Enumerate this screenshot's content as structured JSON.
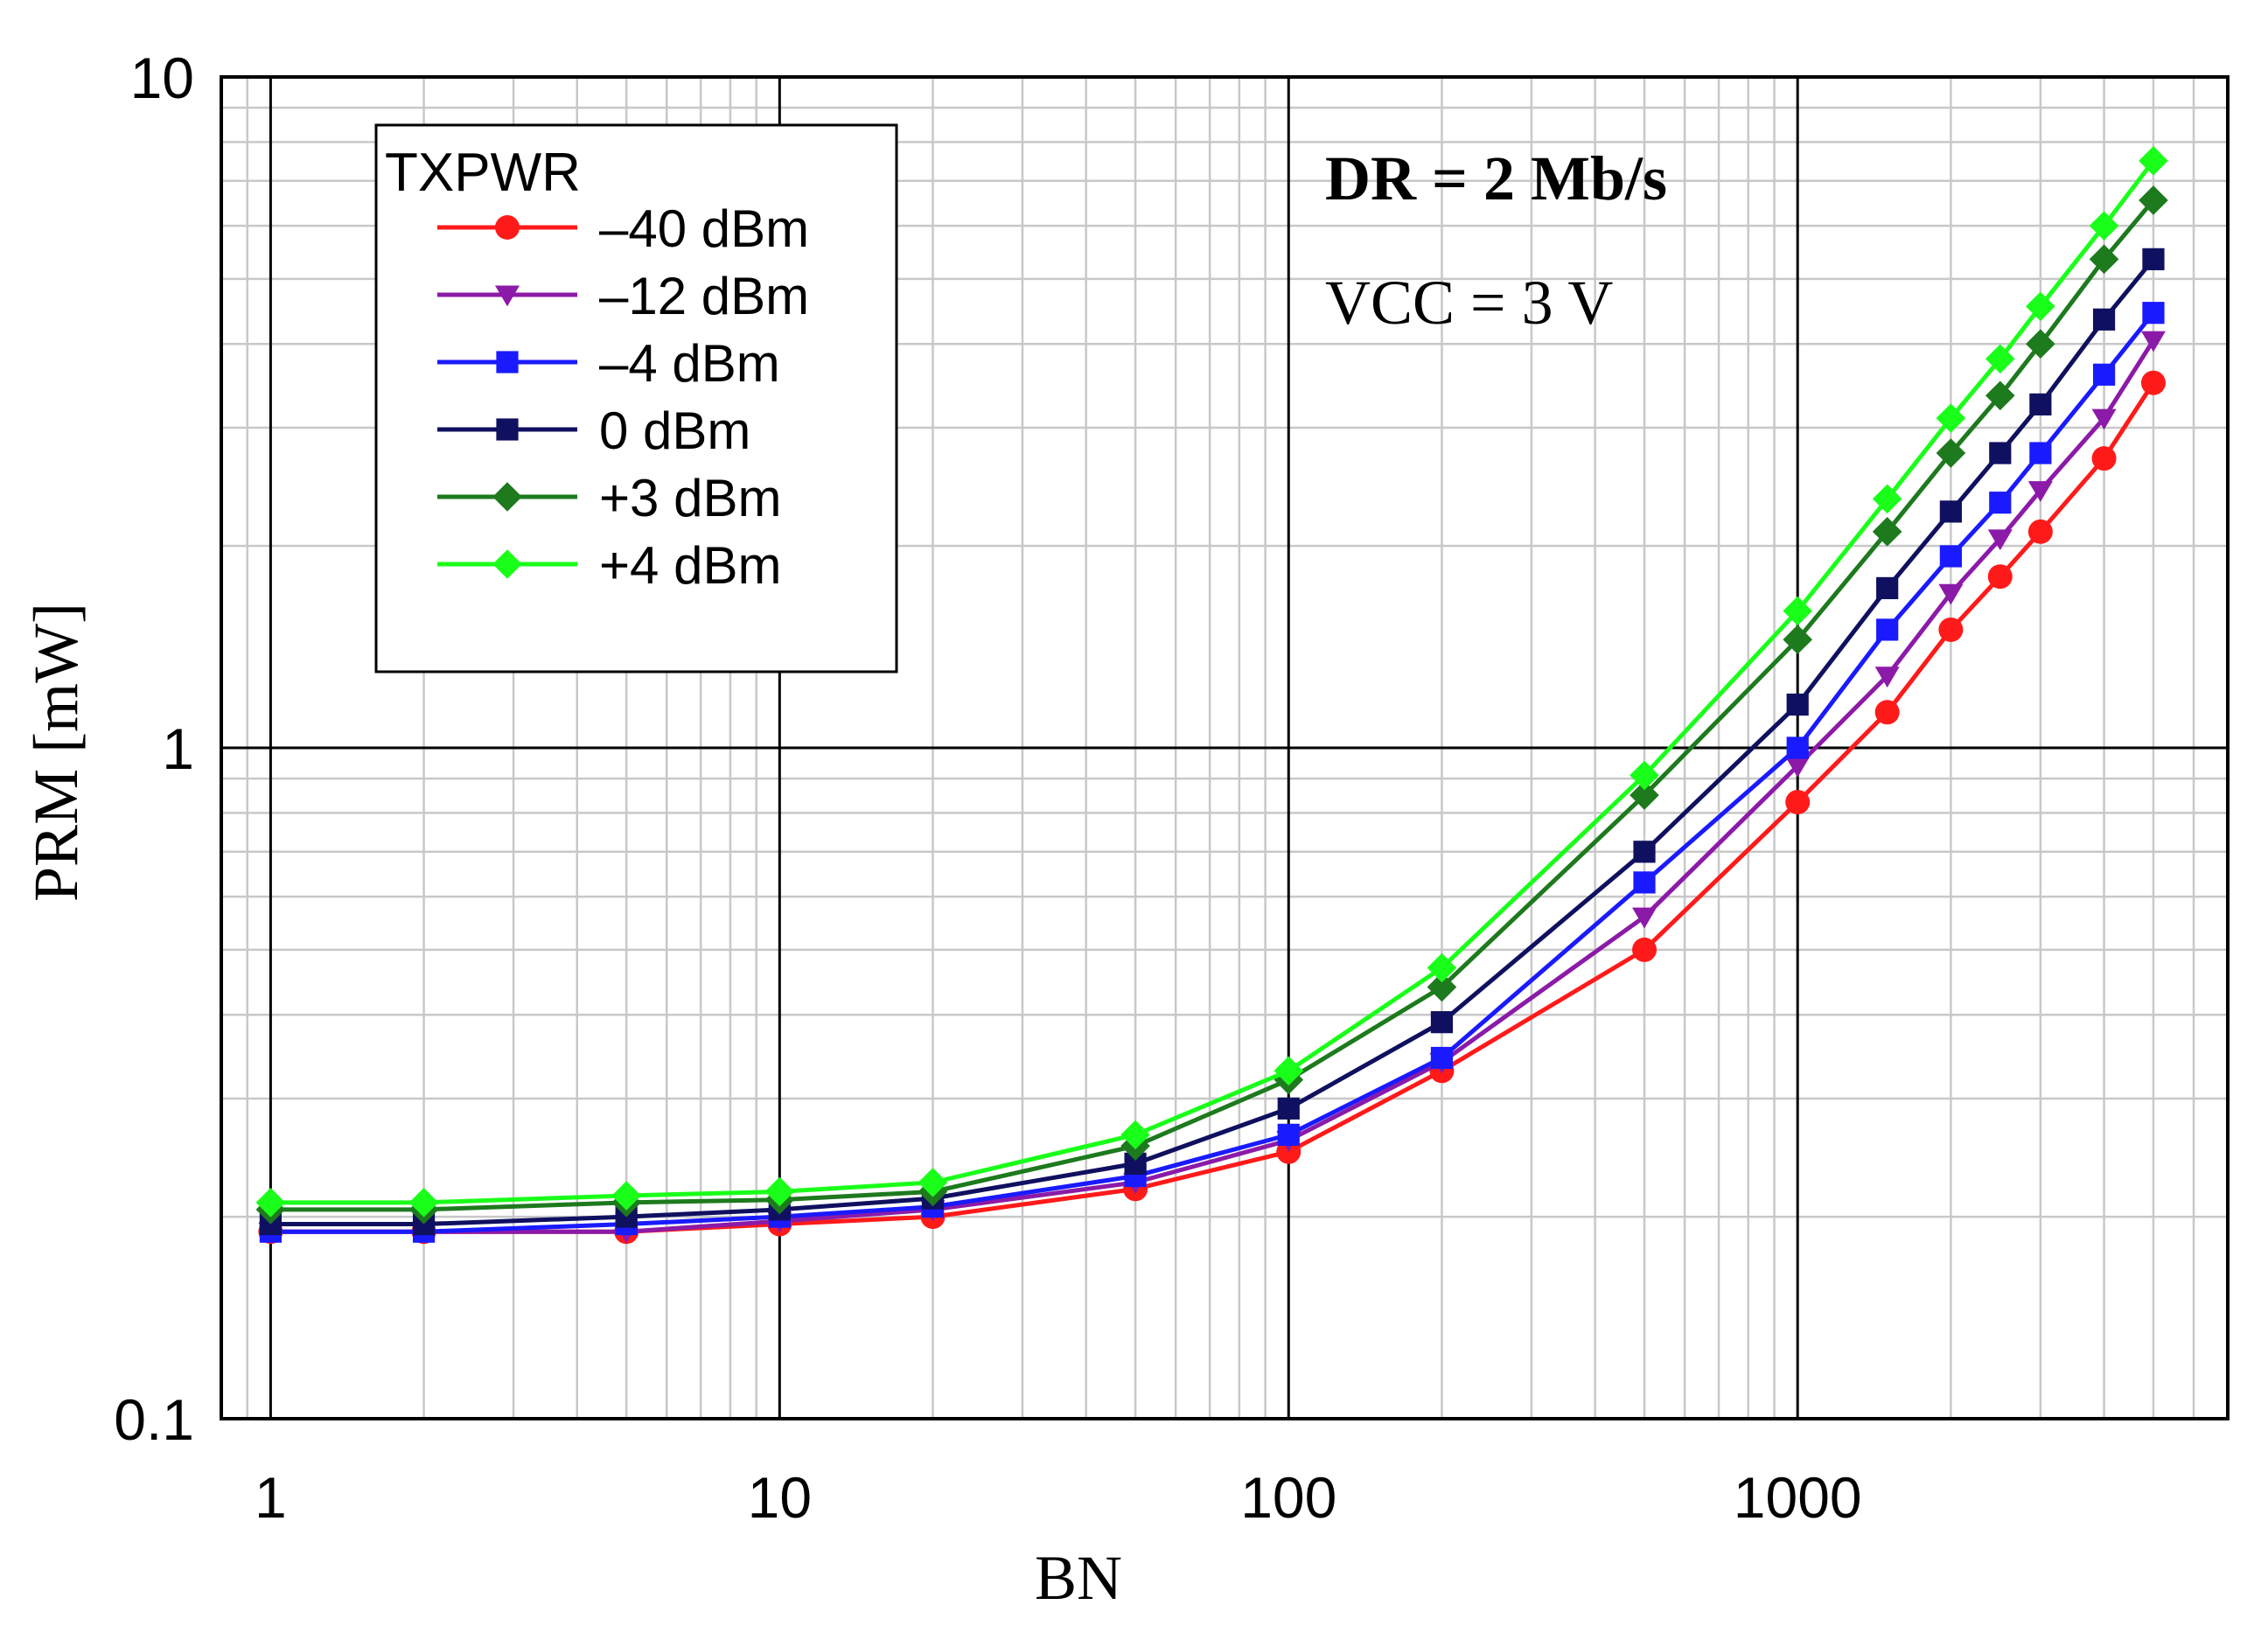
{
  "chart_data": {
    "type": "line",
    "title": "",
    "xlabel": "BN",
    "ylabel": "PRM [mW]",
    "xscale": "log",
    "yscale": "log",
    "xlim": [
      0.8,
      7000
    ],
    "ylim": [
      0.1,
      10
    ],
    "x_ticks": [
      1,
      10,
      100,
      1000
    ],
    "x_tick_labels": [
      "1",
      "10",
      "100",
      "1000"
    ],
    "y_ticks": [
      0.1,
      1,
      10
    ],
    "y_tick_labels": [
      "0.1",
      "1",
      "10"
    ],
    "grid": true,
    "legend_title": "TXPWR",
    "legend_position": "top-left",
    "annotations": [
      "DR = 2 Mb/s",
      "VCC = 3 V"
    ],
    "x": [
      1,
      2,
      5,
      10,
      20,
      50,
      100,
      200,
      500,
      1000,
      1500,
      2000,
      2500,
      3000,
      4000,
      5000
    ],
    "series": [
      {
        "name": "–40 dBm",
        "color": "#ff1a1a",
        "marker": "circle",
        "values": [
          0.19,
          0.19,
          0.19,
          0.195,
          0.2,
          0.22,
          0.25,
          0.33,
          0.5,
          0.83,
          1.13,
          1.5,
          1.8,
          2.1,
          2.7,
          3.5
        ]
      },
      {
        "name": "–12 dBm",
        "color": "#8c1aa8",
        "marker": "triangle-down",
        "values": [
          0.19,
          0.19,
          0.19,
          0.197,
          0.205,
          0.225,
          0.26,
          0.34,
          0.56,
          0.94,
          1.28,
          1.7,
          2.05,
          2.42,
          3.1,
          4.05
        ]
      },
      {
        "name": "–4 dBm",
        "color": "#1a1aff",
        "marker": "square",
        "values": [
          0.19,
          0.19,
          0.195,
          0.2,
          0.207,
          0.23,
          0.265,
          0.345,
          0.63,
          1.0,
          1.5,
          1.93,
          2.32,
          2.75,
          3.6,
          4.45
        ]
      },
      {
        "name": "0 dBm",
        "color": "#101060",
        "marker": "square",
        "values": [
          0.195,
          0.195,
          0.2,
          0.205,
          0.213,
          0.24,
          0.29,
          0.39,
          0.7,
          1.16,
          1.73,
          2.25,
          2.75,
          3.25,
          4.35,
          5.35
        ]
      },
      {
        "name": "+3 dBm",
        "color": "#1d7a1d",
        "marker": "diamond",
        "values": [
          0.205,
          0.205,
          0.21,
          0.212,
          0.218,
          0.255,
          0.32,
          0.44,
          0.85,
          1.45,
          2.1,
          2.75,
          3.35,
          4.0,
          5.35,
          6.55
        ]
      },
      {
        "name": "+4 dBm",
        "color": "#1aff1a",
        "marker": "diamond",
        "values": [
          0.21,
          0.21,
          0.215,
          0.218,
          0.225,
          0.265,
          0.33,
          0.47,
          0.91,
          1.6,
          2.35,
          3.1,
          3.8,
          4.55,
          6.0,
          7.5
        ]
      }
    ]
  }
}
